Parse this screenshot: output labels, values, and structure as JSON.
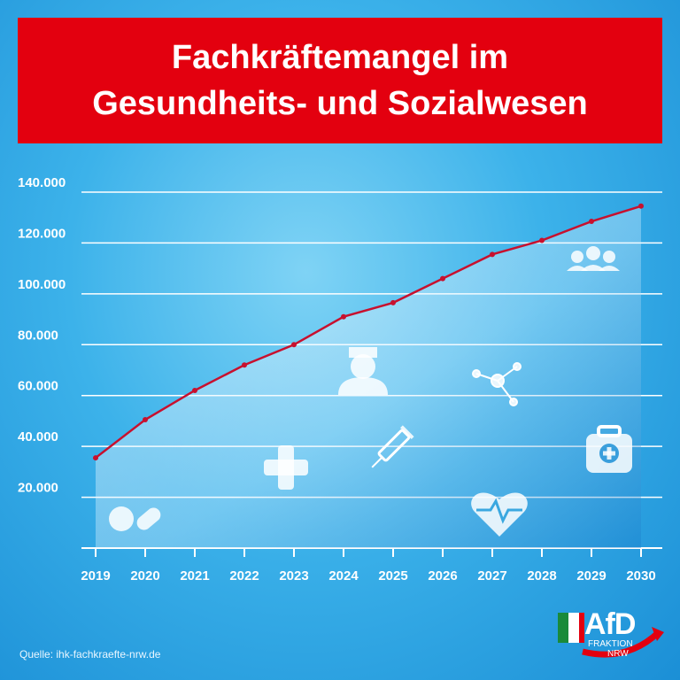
{
  "title": {
    "line1": "Fachkräftemangel im",
    "line2": "Gesundheits- und Sozialwesen"
  },
  "source": "Quelle: ihk-fachkraefte-nrw.de",
  "logo": {
    "name": "AfD",
    "line1": "FRAKTION",
    "line2": "NRW"
  },
  "colors": {
    "title_bg": "#e3000f",
    "line": "#c8102e",
    "grid": "#ffffff"
  },
  "icons": [
    "pills-icon",
    "medical-cross-icon",
    "nurse-icon",
    "syringe-icon",
    "molecule-icon",
    "heart-pulse-icon",
    "first-aid-kit-icon",
    "medical-team-icon"
  ],
  "chart_data": {
    "type": "area",
    "x": [
      "2019",
      "2020",
      "2021",
      "2022",
      "2023",
      "2024",
      "2025",
      "2026",
      "2027",
      "2028",
      "2029",
      "2030"
    ],
    "values": [
      35500,
      50500,
      62000,
      72000,
      80000,
      91000,
      96500,
      106000,
      115500,
      121000,
      128500,
      134500
    ],
    "yticks": [
      "20.000",
      "40.000",
      "60.000",
      "80.000",
      "100.000",
      "120.000",
      "140.000"
    ],
    "ylim": [
      0,
      140000
    ],
    "grid": true,
    "title": "",
    "xlabel": "",
    "ylabel": ""
  }
}
